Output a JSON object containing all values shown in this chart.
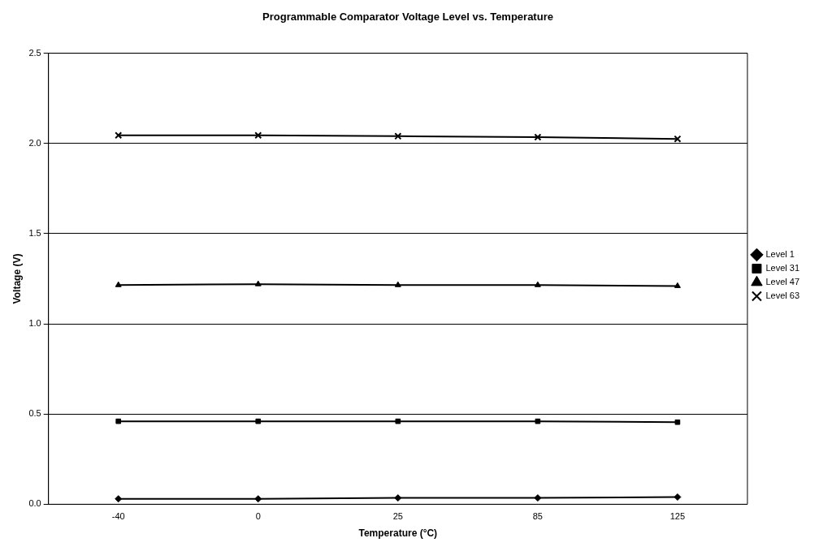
{
  "chart_data": {
    "type": "line",
    "title": "Programmable Comparator Voltage Level vs. Temperature",
    "xlabel": "Temperature (°C)",
    "ylabel": "Voltage (V)",
    "categories": [
      "-40",
      "0",
      "25",
      "85",
      "125"
    ],
    "series": [
      {
        "name": "Level 1",
        "color": "#000000",
        "marker": "diamond",
        "values": [
          0.03,
          0.03,
          0.035,
          0.035,
          0.04
        ]
      },
      {
        "name": "Level 31",
        "color": "#000000",
        "marker": "square",
        "values": [
          0.46,
          0.46,
          0.46,
          0.46,
          0.455
        ]
      },
      {
        "name": "Level 47",
        "color": "#000000",
        "marker": "triangle",
        "values": [
          1.215,
          1.22,
          1.215,
          1.215,
          1.21
        ]
      },
      {
        "name": "Level 63",
        "color": "#000000",
        "marker": "cross",
        "values": [
          2.045,
          2.045,
          2.04,
          2.035,
          2.025
        ]
      }
    ],
    "ylim": [
      0,
      2.5
    ],
    "yticks": [
      {
        "value": 0,
        "label": "0.0"
      },
      {
        "value": 0.5,
        "label": "0.5"
      },
      {
        "value": 1,
        "label": "1.0"
      },
      {
        "value": 1.5,
        "label": "1.5"
      },
      {
        "value": 2,
        "label": "2.0"
      },
      {
        "value": 2.5,
        "label": "2.5"
      }
    ],
    "grid": "y",
    "legend": "right",
    "line_style": "solid"
  }
}
